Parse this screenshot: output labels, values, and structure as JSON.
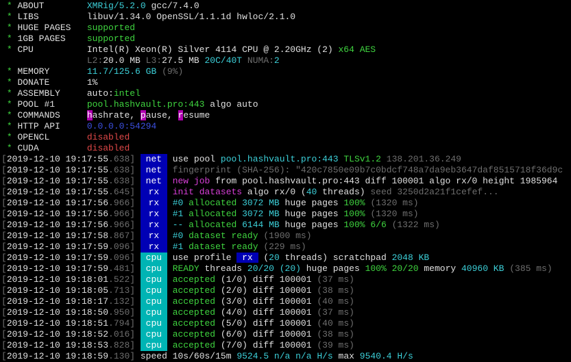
{
  "colors": {
    "white": "#e0e0e0",
    "green": "#3fd43f",
    "cyan": "#3ccfd8",
    "dim": "#6e6e6e",
    "magenta": "#d83fd8",
    "blue": "#3c50e0",
    "red": "#e04848",
    "net_tag_bg": "#0000b4",
    "cpu_tag_bg": "#00b4b4"
  },
  "summary": [
    {
      "star": "*",
      "label": "ABOUT",
      "segs": [
        {
          "t": "XMRig/5.2.0",
          "c": "c"
        },
        {
          "t": " gcc/7.4.0",
          "c": "w"
        }
      ]
    },
    {
      "star": "*",
      "label": "LIBS",
      "segs": [
        {
          "t": "libuv/1.34.0 OpenSSL/1.1.1d hwloc/2.1.0",
          "c": "w"
        }
      ]
    },
    {
      "star": "*",
      "label": "HUGE PAGES",
      "segs": [
        {
          "t": "supported",
          "c": "g"
        }
      ]
    },
    {
      "star": "*",
      "label": "1GB PAGES",
      "segs": [
        {
          "t": "supported",
          "c": "g"
        }
      ]
    },
    {
      "star": "*",
      "label": "CPU",
      "segs": [
        {
          "t": "Intel(R) Xeon(R) Silver 4114 CPU @ 2.20GHz (2)",
          "c": "w"
        },
        {
          "t": " x64 AES",
          "c": "g"
        }
      ]
    },
    {
      "star": "",
      "label": "",
      "segs": [
        {
          "t": "L2:",
          "c": "d"
        },
        {
          "t": "20.0 MB",
          "c": "w"
        },
        {
          "t": " L3:",
          "c": "d"
        },
        {
          "t": "27.5 MB",
          "c": "w"
        },
        {
          "t": " 20C/40T",
          "c": "c"
        },
        {
          "t": " NUMA:",
          "c": "d"
        },
        {
          "t": "2",
          "c": "c"
        }
      ]
    },
    {
      "star": "*",
      "label": "MEMORY",
      "segs": [
        {
          "t": "11.7/125.6 GB",
          "c": "c"
        },
        {
          "t": " (9%)",
          "c": "d"
        }
      ]
    },
    {
      "star": "*",
      "label": "DONATE",
      "segs": [
        {
          "t": "1%",
          "c": "w"
        }
      ]
    },
    {
      "star": "*",
      "label": "ASSEMBLY",
      "segs": [
        {
          "t": "auto:",
          "c": "w"
        },
        {
          "t": "intel",
          "c": "g"
        }
      ]
    },
    {
      "star": "*",
      "label": "POOL #1",
      "segs": [
        {
          "t": "pool.hashvault.pro:443",
          "c": "g"
        },
        {
          "t": " algo auto",
          "c": "w"
        }
      ]
    },
    {
      "star": "*",
      "label": "COMMANDS",
      "segs": [
        {
          "t": "h",
          "c": "hl"
        },
        {
          "t": "ashrate, ",
          "c": "w"
        },
        {
          "t": "p",
          "c": "hl"
        },
        {
          "t": "ause, ",
          "c": "w"
        },
        {
          "t": "r",
          "c": "hl"
        },
        {
          "t": "esume",
          "c": "w"
        }
      ]
    },
    {
      "star": "*",
      "label": "HTTP API",
      "segs": [
        {
          "t": "0.0.0.0:54294",
          "c": "b"
        }
      ]
    },
    {
      "star": "*",
      "label": "OPENCL",
      "segs": [
        {
          "t": "disabled",
          "c": "r"
        }
      ]
    },
    {
      "star": "*",
      "label": "CUDA",
      "segs": [
        {
          "t": "disabled",
          "c": "r"
        }
      ]
    }
  ],
  "log": [
    {
      "ts": "2019-12-10 19:17:55",
      "ms": ".638",
      "tag": "net",
      "segs": [
        {
          "t": "use pool ",
          "c": "w"
        },
        {
          "t": "pool.hashvault.pro:443",
          "c": "c"
        },
        {
          "t": " TLSv1.2",
          "c": "g"
        },
        {
          "t": " 138.201.36.249",
          "c": "d"
        }
      ]
    },
    {
      "ts": "2019-12-10 19:17:55",
      "ms": ".638",
      "tag": "net",
      "segs": [
        {
          "t": "fingerprint (SHA-256): \"420c7850e09b7c0bdcf748a7da9eb3647daf8515718f36d9c",
          "c": "d"
        }
      ]
    },
    {
      "ts": "2019-12-10 19:17:55",
      "ms": ".638",
      "tag": "net",
      "segs": [
        {
          "t": "new job",
          "c": "m"
        },
        {
          "t": " from pool.hashvault.pro:443 diff 100001 algo rx/0 height 1985964",
          "c": "w"
        }
      ]
    },
    {
      "ts": "2019-12-10 19:17:55",
      "ms": ".645",
      "tag": "rx",
      "segs": [
        {
          "t": "init datasets",
          "c": "m"
        },
        {
          "t": " algo rx/0 (",
          "c": "w"
        },
        {
          "t": "40",
          "c": "c"
        },
        {
          "t": " threads)",
          "c": "w"
        },
        {
          "t": " seed 3250d2a21f1cefef...",
          "c": "d"
        }
      ]
    },
    {
      "ts": "2019-12-10 19:17:56",
      "ms": ".966",
      "tag": "rx",
      "segs": [
        {
          "t": "#0",
          "c": "c"
        },
        {
          "t": " allocated",
          "c": "g"
        },
        {
          "t": " 3072 MB",
          "c": "c"
        },
        {
          "t": " huge pages ",
          "c": "w"
        },
        {
          "t": "100%",
          "c": "g"
        },
        {
          "t": " (1320 ms)",
          "c": "d"
        }
      ]
    },
    {
      "ts": "2019-12-10 19:17:56",
      "ms": ".966",
      "tag": "rx",
      "segs": [
        {
          "t": "#1",
          "c": "c"
        },
        {
          "t": " allocated",
          "c": "g"
        },
        {
          "t": " 3072 MB",
          "c": "c"
        },
        {
          "t": " huge pages ",
          "c": "w"
        },
        {
          "t": "100%",
          "c": "g"
        },
        {
          "t": " (1320 ms)",
          "c": "d"
        }
      ]
    },
    {
      "ts": "2019-12-10 19:17:56",
      "ms": ".966",
      "tag": "rx",
      "segs": [
        {
          "t": "--",
          "c": "c"
        },
        {
          "t": " allocated",
          "c": "g"
        },
        {
          "t": " 6144 MB",
          "c": "c"
        },
        {
          "t": " huge pages ",
          "c": "w"
        },
        {
          "t": "100% 6/6",
          "c": "g"
        },
        {
          "t": " (1322 ms)",
          "c": "d"
        }
      ]
    },
    {
      "ts": "2019-12-10 19:17:58",
      "ms": ".867",
      "tag": "rx",
      "segs": [
        {
          "t": "#0",
          "c": "c"
        },
        {
          "t": " dataset ready",
          "c": "g"
        },
        {
          "t": " (1900 ms)",
          "c": "d"
        }
      ]
    },
    {
      "ts": "2019-12-10 19:17:59",
      "ms": ".096",
      "tag": "rx",
      "segs": [
        {
          "t": "#1",
          "c": "c"
        },
        {
          "t": " dataset ready",
          "c": "g"
        },
        {
          "t": " (229 ms)",
          "c": "d"
        }
      ]
    },
    {
      "ts": "2019-12-10 19:17:59",
      "ms": ".096",
      "tag": "cpu",
      "segs": [
        {
          "t": "use profile ",
          "c": "w"
        },
        {
          "t": " rx ",
          "c": "tn"
        },
        {
          "t": " (",
          "c": "w"
        },
        {
          "t": "20",
          "c": "c"
        },
        {
          "t": " threads) scratchpad ",
          "c": "w"
        },
        {
          "t": "2048 KB",
          "c": "c"
        }
      ]
    },
    {
      "ts": "2019-12-10 19:17:59",
      "ms": ".481",
      "tag": "cpu",
      "segs": [
        {
          "t": "READY",
          "c": "g"
        },
        {
          "t": " threads ",
          "c": "w"
        },
        {
          "t": "20/20 (20)",
          "c": "c"
        },
        {
          "t": " huge pages ",
          "c": "w"
        },
        {
          "t": "100% 20/20",
          "c": "g"
        },
        {
          "t": " memory ",
          "c": "w"
        },
        {
          "t": "40960 KB",
          "c": "c"
        },
        {
          "t": " (385 ms)",
          "c": "d"
        }
      ]
    },
    {
      "ts": "2019-12-10 19:18:01",
      "ms": ".522",
      "tag": "cpu",
      "segs": [
        {
          "t": "accepted",
          "c": "g"
        },
        {
          "t": " (1/0) diff 100001",
          "c": "w"
        },
        {
          "t": " (37 ms)",
          "c": "d"
        }
      ]
    },
    {
      "ts": "2019-12-10 19:18:05",
      "ms": ".713",
      "tag": "cpu",
      "segs": [
        {
          "t": "accepted",
          "c": "g"
        },
        {
          "t": " (2/0) diff 100001",
          "c": "w"
        },
        {
          "t": " (38 ms)",
          "c": "d"
        }
      ]
    },
    {
      "ts": "2019-12-10 19:18:17",
      "ms": ".132",
      "tag": "cpu",
      "segs": [
        {
          "t": "accepted",
          "c": "g"
        },
        {
          "t": " (3/0) diff 100001",
          "c": "w"
        },
        {
          "t": " (40 ms)",
          "c": "d"
        }
      ]
    },
    {
      "ts": "2019-12-10 19:18:50",
      "ms": ".950",
      "tag": "cpu",
      "segs": [
        {
          "t": "accepted",
          "c": "g"
        },
        {
          "t": " (4/0) diff 100001",
          "c": "w"
        },
        {
          "t": " (37 ms)",
          "c": "d"
        }
      ]
    },
    {
      "ts": "2019-12-10 19:18:51",
      "ms": ".794",
      "tag": "cpu",
      "segs": [
        {
          "t": "accepted",
          "c": "g"
        },
        {
          "t": " (5/0) diff 100001",
          "c": "w"
        },
        {
          "t": " (40 ms)",
          "c": "d"
        }
      ]
    },
    {
      "ts": "2019-12-10 19:18:52",
      "ms": ".016",
      "tag": "cpu",
      "segs": [
        {
          "t": "accepted",
          "c": "g"
        },
        {
          "t": " (6/0) diff 100001",
          "c": "w"
        },
        {
          "t": " (38 ms)",
          "c": "d"
        }
      ]
    },
    {
      "ts": "2019-12-10 19:18:53",
      "ms": ".828",
      "tag": "cpu",
      "segs": [
        {
          "t": "accepted",
          "c": "g"
        },
        {
          "t": " (7/0) diff 100001",
          "c": "w"
        },
        {
          "t": " (39 ms)",
          "c": "d"
        }
      ]
    },
    {
      "ts": "2019-12-10 19:18:59",
      "ms": ".130",
      "tag": "speed",
      "segs": [
        {
          "t": "10s/60s/15m ",
          "c": "w"
        },
        {
          "t": "9524.5 n/a n/a H/s",
          "c": "c"
        },
        {
          "t": " max ",
          "c": "w"
        },
        {
          "t": "9540.4 H/s",
          "c": "c"
        }
      ]
    }
  ]
}
